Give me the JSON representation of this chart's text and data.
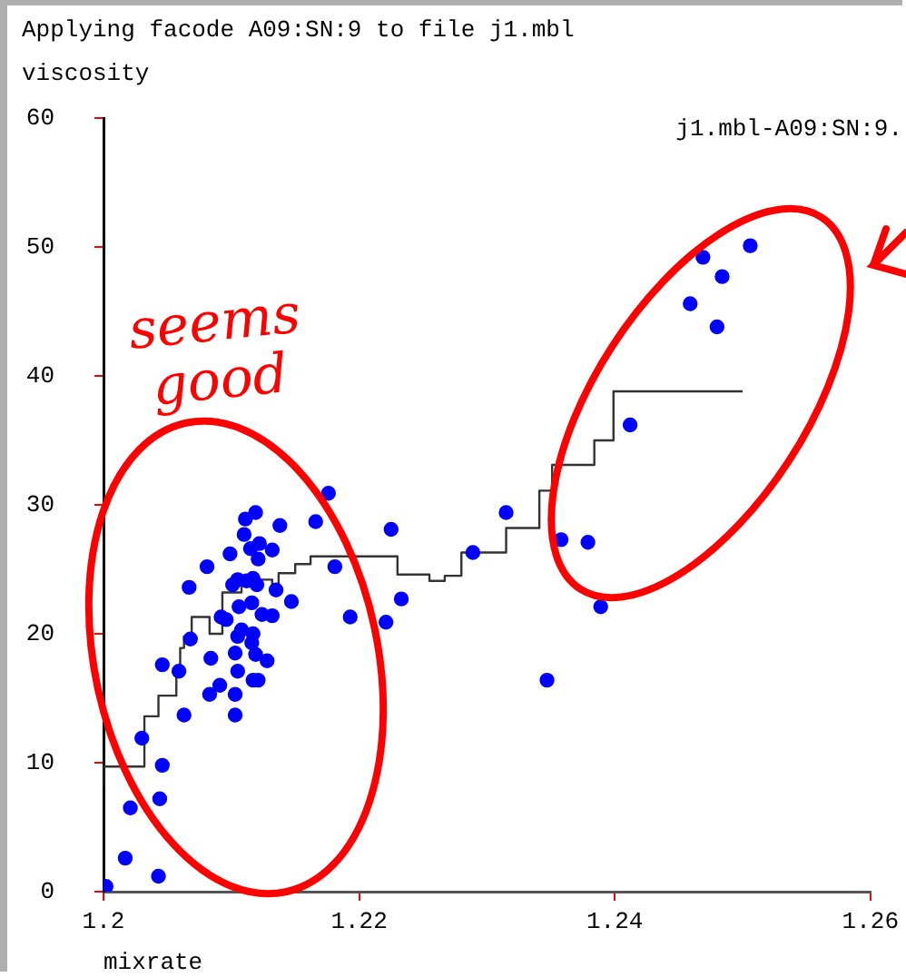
{
  "chart_data": {
    "type": "scatter",
    "title": "Applying facode A09:SN:9 to file j1.mbl",
    "xlabel": "mixrate",
    "ylabel": "viscosity",
    "annotations": [
      "j1.mbl-A09:SN:9.",
      "seems good"
    ],
    "xlim": [
      1.2,
      1.26
    ],
    "xticks": [
      1.2,
      1.22,
      1.24,
      1.26
    ],
    "ylim": [
      0,
      60
    ],
    "yticks": [
      0,
      10,
      20,
      30,
      40,
      50,
      60
    ],
    "grid": false,
    "legend": false,
    "line_style": "solid",
    "series": [
      {
        "marker": "circle",
        "color": "#0000ff",
        "x": [
          1.2002,
          1.2043,
          1.2017,
          1.2021,
          1.2044,
          1.2046,
          1.203,
          1.2063,
          1.2103,
          1.2103,
          1.2083,
          1.2091,
          1.2117,
          1.2121,
          1.2105,
          1.2128,
          1.2046,
          1.2059,
          1.2084,
          1.2103,
          1.2119,
          1.2068,
          1.2105,
          1.2117,
          1.2116,
          1.2108,
          1.2092,
          1.2096,
          1.2124,
          1.2132,
          1.2106,
          1.2116,
          1.2147,
          1.2193,
          1.2221,
          1.2233,
          1.2135,
          1.2067,
          1.2101,
          1.2105,
          1.2112,
          1.2117,
          1.212,
          1.2181,
          1.2081,
          1.2099,
          1.2121,
          1.2115,
          1.2122,
          1.2132,
          1.211,
          1.2111,
          1.2119,
          1.2138,
          1.2166,
          1.2176,
          1.2225,
          1.2315,
          1.2289,
          1.2358,
          1.2379,
          1.2389,
          1.2347,
          1.2412,
          1.248,
          1.2459,
          1.2484,
          1.2469,
          1.2506
        ],
        "values": [
          0.4,
          1.2,
          2.6,
          6.5,
          7.2,
          9.8,
          11.9,
          13.7,
          13.7,
          15.3,
          15.3,
          16.0,
          16.4,
          16.4,
          17.1,
          17.9,
          17.6,
          17.1,
          18.1,
          18.5,
          18.4,
          19.6,
          19.8,
          20.0,
          19.3,
          20.3,
          21.3,
          21.1,
          21.5,
          21.4,
          22.1,
          22.4,
          22.5,
          21.3,
          20.9,
          22.7,
          23.4,
          23.6,
          23.8,
          24.2,
          24.1,
          24.3,
          23.8,
          25.2,
          25.2,
          26.2,
          25.8,
          26.6,
          27.0,
          26.5,
          27.7,
          28.9,
          29.4,
          28.4,
          28.7,
          30.9,
          28.1,
          29.4,
          26.3,
          27.3,
          27.1,
          22.1,
          16.4,
          36.2,
          43.8,
          45.6,
          47.7,
          49.2,
          50.1
        ]
      },
      {
        "type": "step",
        "color": "#333333",
        "x": [
          1.2,
          1.2032,
          1.2043,
          1.2057,
          1.206,
          1.2063,
          1.2069,
          1.2083,
          1.2093,
          1.2108,
          1.2115,
          1.2132,
          1.2137,
          1.215,
          1.2162,
          1.223,
          1.2255,
          1.2267,
          1.228,
          1.2315,
          1.2341,
          1.2351,
          1.2384,
          1.2399,
          1.2426,
          1.25
        ],
        "values": [
          8.2,
          9.7,
          13.6,
          15.2,
          17.1,
          18.9,
          19.8,
          21.3,
          20.0,
          23.2,
          23.8,
          24.2,
          23.6,
          24.7,
          25.4,
          26.0,
          24.6,
          24.1,
          24.5,
          26.3,
          28.2,
          31.1,
          33.1,
          35.0,
          38.8,
          38.8
        ]
      }
    ]
  }
}
